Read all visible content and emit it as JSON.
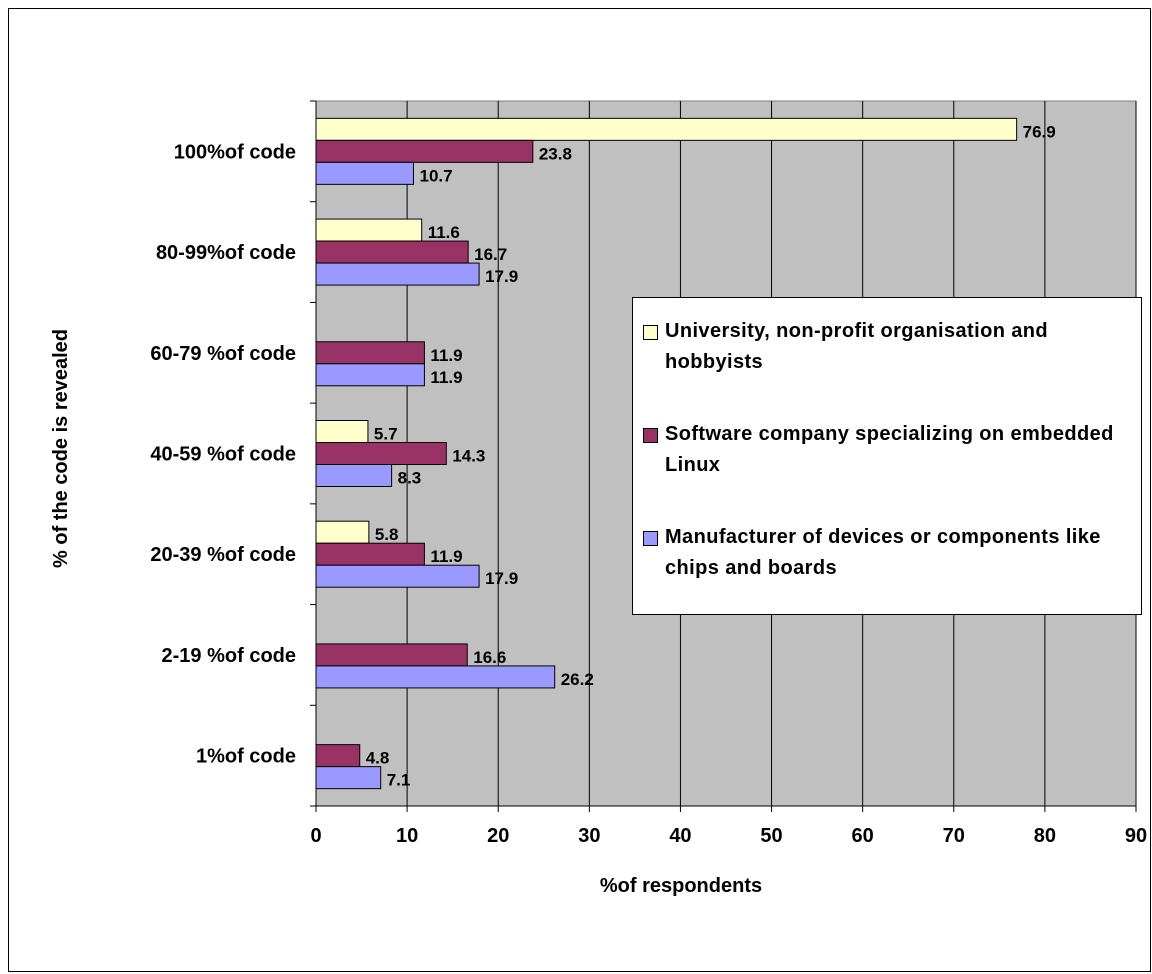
{
  "chart_data": {
    "type": "bar",
    "orientation": "horizontal",
    "categories": [
      "100%of code",
      "80-99%of code",
      "60-79 %of code",
      "40-59 %of code",
      "20-39 %of code",
      "2-19 %of code",
      "1%of code"
    ],
    "series": [
      {
        "name": "University, non-profit organisation and hobbyists",
        "color": "#ffffcc",
        "values": [
          76.9,
          11.6,
          null,
          5.7,
          5.8,
          null,
          null
        ]
      },
      {
        "name": "Software company specializing on embedded Linux",
        "color": "#993366",
        "values": [
          23.8,
          16.7,
          11.9,
          14.3,
          11.9,
          16.6,
          4.8
        ]
      },
      {
        "name": "Manufacturer of devices or components like chips and boards",
        "color": "#9999ff",
        "values": [
          10.7,
          17.9,
          11.9,
          8.3,
          17.9,
          26.2,
          7.1
        ]
      }
    ],
    "xlabel": "%of respondents",
    "ylabel": "% of the code is revealed",
    "xlim": [
      0,
      90
    ],
    "xticks": [
      0,
      10,
      20,
      30,
      40,
      50,
      60,
      70,
      80,
      90
    ],
    "grid": true,
    "plot_background": "#c0c0c0",
    "legend_position": "right"
  }
}
